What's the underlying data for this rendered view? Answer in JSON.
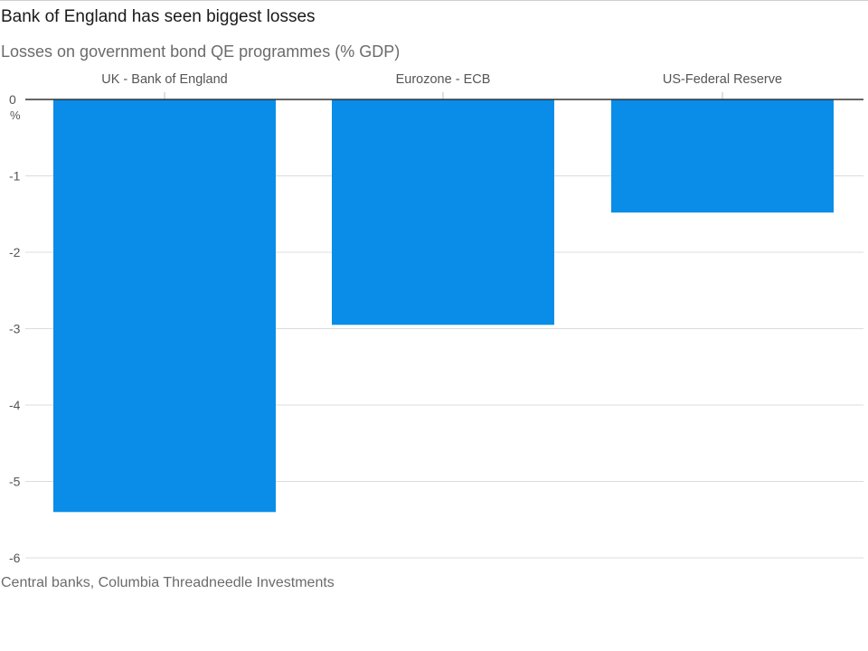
{
  "chart_data": {
    "type": "bar",
    "title": "Bank of England has seen biggest losses",
    "subtitle": "Losses on government bond QE programmes (% GDP)",
    "source": "Central banks, Columbia Threadneedle Investments",
    "categories": [
      "UK - Bank of England",
      "Eurozone - ECB",
      "US-Federal Reserve"
    ],
    "values": [
      -5.4,
      -2.95,
      -1.48
    ],
    "ylim": [
      -6,
      0
    ],
    "yticks": [
      0,
      -1,
      -2,
      -3,
      -4,
      -5,
      -6
    ],
    "y_unit": "%",
    "xlabel": "",
    "ylabel": "",
    "grid": true,
    "colors": {
      "bar": "#0a8de8",
      "grid": "#dcdcdc",
      "zero_line": "#333333"
    }
  }
}
